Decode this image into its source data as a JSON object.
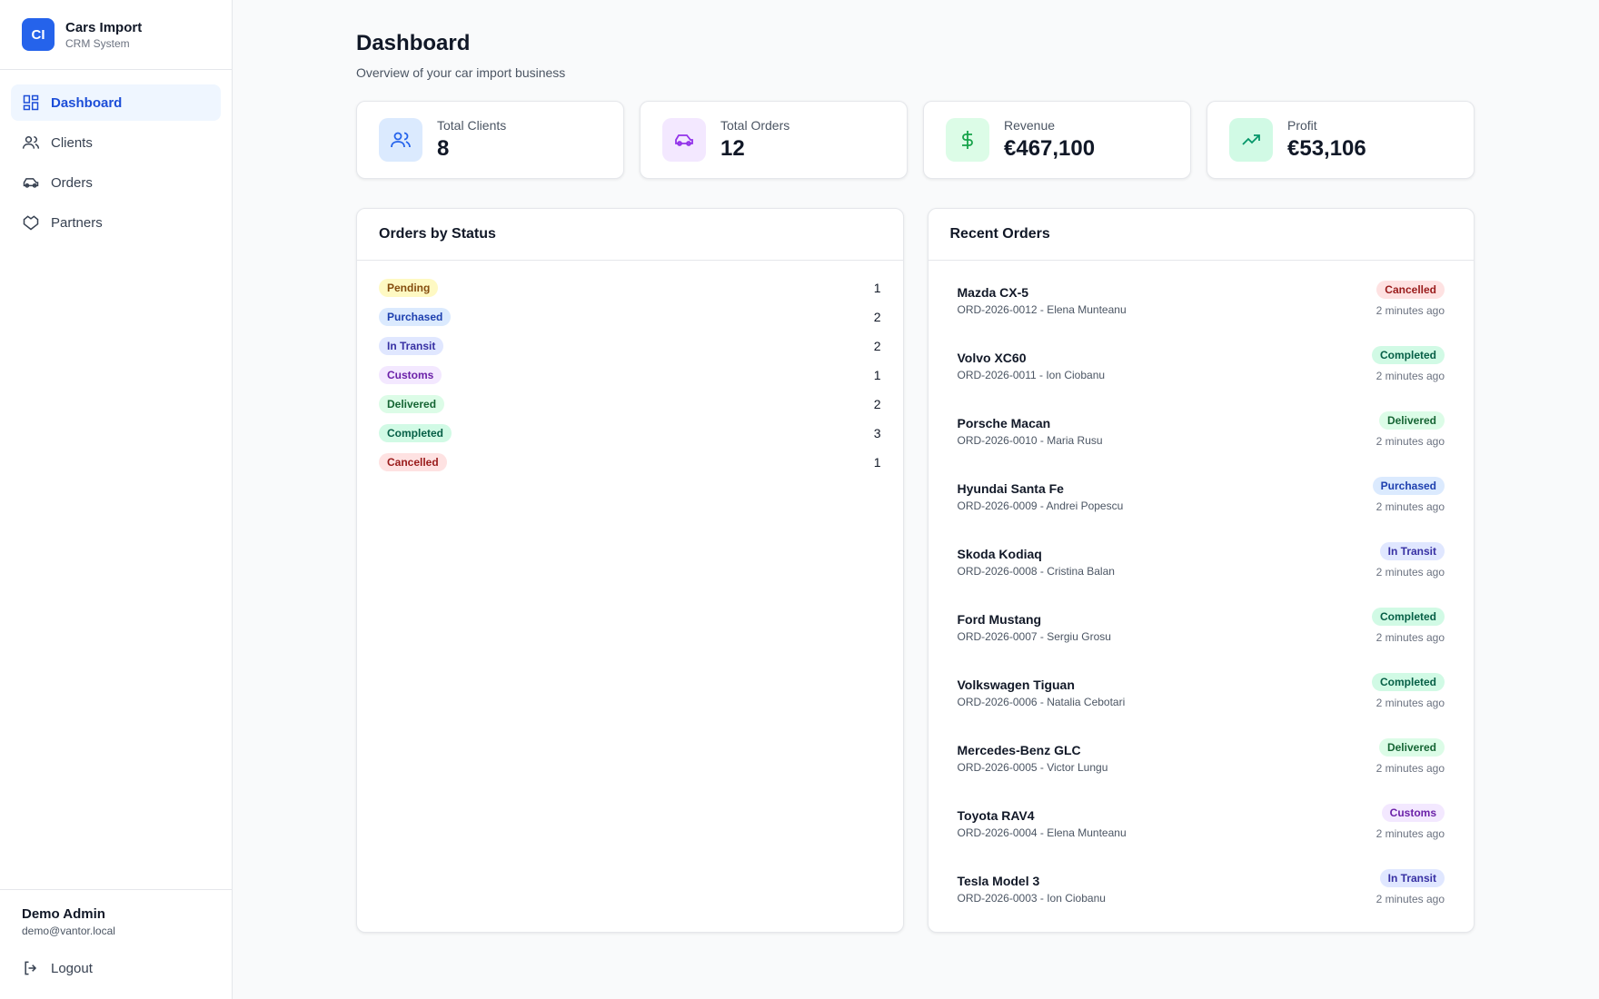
{
  "sidebar": {
    "brand": {
      "logo": "CI",
      "name": "Cars Import",
      "subtitle": "CRM System"
    },
    "nav": [
      "Dashboard",
      "Clients",
      "Orders",
      "Partners"
    ],
    "user": {
      "name": "Demo Admin",
      "email": "demo@vantor.local"
    },
    "logout": "Logout"
  },
  "header": {
    "title": "Dashboard",
    "subtitle": "Overview of your car import business"
  },
  "stats": [
    {
      "label": "Total Clients",
      "value": "8"
    },
    {
      "label": "Total Orders",
      "value": "12"
    },
    {
      "label": "Revenue",
      "value": "€467,100"
    },
    {
      "label": "Profit",
      "value": "€53,106"
    }
  ],
  "orders_by_status": {
    "title": "Orders by Status",
    "rows": [
      {
        "status": "Pending",
        "count": 1,
        "bg": "#fef9c3",
        "fg": "#854d0e"
      },
      {
        "status": "Purchased",
        "count": 2,
        "bg": "#dbeafe",
        "fg": "#1e40af"
      },
      {
        "status": "In Transit",
        "count": 2,
        "bg": "#e0e7ff",
        "fg": "#3730a3"
      },
      {
        "status": "Customs",
        "count": 1,
        "bg": "#f3e8ff",
        "fg": "#6b21a8"
      },
      {
        "status": "Delivered",
        "count": 2,
        "bg": "#dcfce7",
        "fg": "#166534"
      },
      {
        "status": "Completed",
        "count": 3,
        "bg": "#d1fae5",
        "fg": "#065f46"
      },
      {
        "status": "Cancelled",
        "count": 1,
        "bg": "#fee2e2",
        "fg": "#991b1b"
      }
    ]
  },
  "recent_orders": {
    "title": "Recent Orders",
    "items": [
      {
        "car": "Mazda CX-5",
        "order": "ORD-2026-0012 - Elena Munteanu",
        "status": "Cancelled",
        "time": "2 minutes ago"
      },
      {
        "car": "Volvo XC60",
        "order": "ORD-2026-0011 - Ion Ciobanu",
        "status": "Completed",
        "time": "2 minutes ago"
      },
      {
        "car": "Porsche Macan",
        "order": "ORD-2026-0010 - Maria Rusu",
        "status": "Delivered",
        "time": "2 minutes ago"
      },
      {
        "car": "Hyundai Santa Fe",
        "order": "ORD-2026-0009 - Andrei Popescu",
        "status": "Purchased",
        "time": "2 minutes ago"
      },
      {
        "car": "Skoda Kodiaq",
        "order": "ORD-2026-0008 - Cristina Balan",
        "status": "In Transit",
        "time": "2 minutes ago"
      },
      {
        "car": "Ford Mustang",
        "order": "ORD-2026-0007 - Sergiu Grosu",
        "status": "Completed",
        "time": "2 minutes ago"
      },
      {
        "car": "Volkswagen Tiguan",
        "order": "ORD-2026-0006 - Natalia Cebotari",
        "status": "Completed",
        "time": "2 minutes ago"
      },
      {
        "car": "Mercedes-Benz GLC",
        "order": "ORD-2026-0005 - Victor Lungu",
        "status": "Delivered",
        "time": "2 minutes ago"
      },
      {
        "car": "Toyota RAV4",
        "order": "ORD-2026-0004 - Elena Munteanu",
        "status": "Customs",
        "time": "2 minutes ago"
      },
      {
        "car": "Tesla Model 3",
        "order": "ORD-2026-0003 - Ion Ciobanu",
        "status": "In Transit",
        "time": "2 minutes ago"
      }
    ]
  }
}
